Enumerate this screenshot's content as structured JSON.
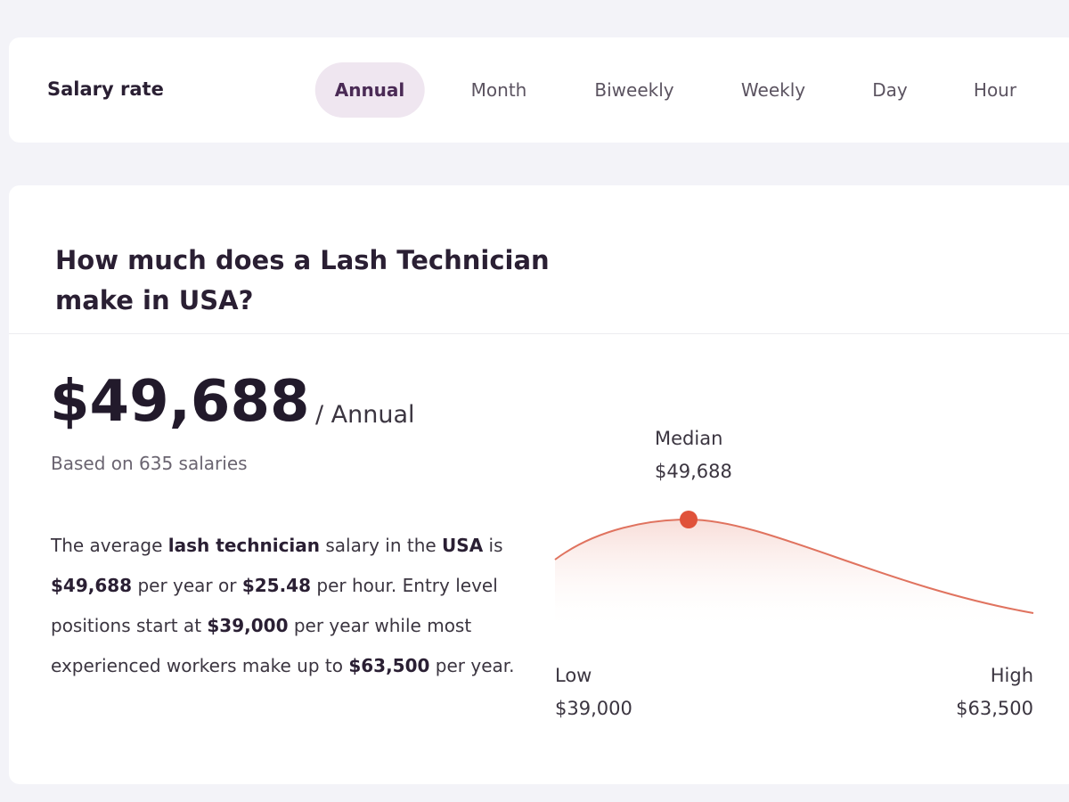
{
  "rate_card": {
    "label": "Salary rate",
    "active": 0,
    "tabs": [
      "Annual",
      "Month",
      "Biweekly",
      "Weekly",
      "Day",
      "Hour"
    ]
  },
  "salary_card": {
    "heading": "How much does a Lash Technician make in USA?",
    "amount": "$49,688",
    "period": "/ Annual",
    "basis": "Based on 635 salaries",
    "description": [
      {
        "text": "The average ",
        "bold": false
      },
      {
        "text": "lash technician",
        "bold": true
      },
      {
        "text": " salary in the ",
        "bold": false
      },
      {
        "text": "USA",
        "bold": true
      },
      {
        "text": " is ",
        "bold": false
      },
      {
        "text": "$49,688",
        "bold": true
      },
      {
        "text": " per year or ",
        "bold": false
      },
      {
        "text": "$25.48",
        "bold": true
      },
      {
        "text": " per hour. Entry level positions start at ",
        "bold": false
      },
      {
        "text": "$39,000",
        "bold": true
      },
      {
        "text": " per year while most experienced workers make up to ",
        "bold": false
      },
      {
        "text": "$63,500",
        "bold": true
      },
      {
        "text": " per year.",
        "bold": false
      }
    ],
    "range": {
      "median_label": "Median",
      "median_value": "$49,688",
      "low_label": "Low",
      "low_value": "$39,000",
      "high_label": "High",
      "high_value": "$63,500"
    }
  }
}
